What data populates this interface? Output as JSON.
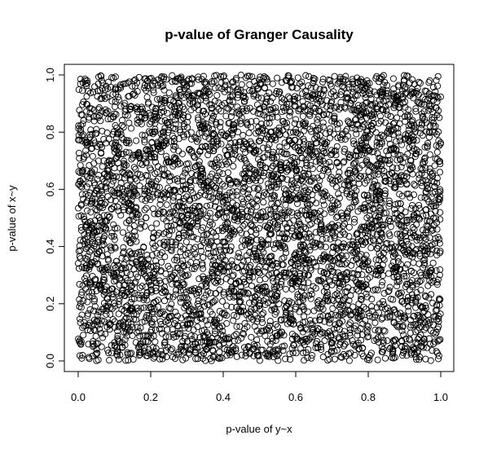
{
  "chart_data": {
    "type": "scatter",
    "title": "p-value of Granger Causality",
    "xlabel": "p-value of y~x",
    "ylabel": "p-value of x~y",
    "xlim": [
      0.0,
      1.0
    ],
    "ylim": [
      0.0,
      1.0
    ],
    "xticks": [
      "0.0",
      "0.2",
      "0.4",
      "0.6",
      "0.8",
      "1.0"
    ],
    "yticks": [
      "0.0",
      "0.2",
      "0.4",
      "0.6",
      "0.8",
      "1.0"
    ],
    "grid": false,
    "marker": "open-circle",
    "marker_color": "#000000",
    "point_count_approx": 5000,
    "distribution": "approximately uniform over [0,1] x [0,1]",
    "points_sample": [
      [
        0.02,
        0.98
      ],
      [
        0.11,
        0.95
      ],
      [
        0.24,
        0.91
      ],
      [
        0.37,
        0.97
      ],
      [
        0.49,
        0.93
      ],
      [
        0.58,
        0.99
      ],
      [
        0.66,
        0.9
      ],
      [
        0.78,
        0.96
      ],
      [
        0.88,
        0.92
      ],
      [
        0.97,
        0.98
      ],
      [
        0.05,
        0.81
      ],
      [
        0.16,
        0.77
      ],
      [
        0.29,
        0.85
      ],
      [
        0.41,
        0.72
      ],
      [
        0.53,
        0.8
      ],
      [
        0.64,
        0.74
      ],
      [
        0.75,
        0.83
      ],
      [
        0.83,
        0.71
      ],
      [
        0.92,
        0.79
      ],
      [
        0.99,
        0.86
      ],
      [
        0.03,
        0.62
      ],
      [
        0.14,
        0.55
      ],
      [
        0.22,
        0.68
      ],
      [
        0.35,
        0.58
      ],
      [
        0.46,
        0.64
      ],
      [
        0.57,
        0.52
      ],
      [
        0.69,
        0.66
      ],
      [
        0.8,
        0.57
      ],
      [
        0.9,
        0.63
      ],
      [
        0.96,
        0.51
      ],
      [
        0.07,
        0.43
      ],
      [
        0.19,
        0.37
      ],
      [
        0.31,
        0.47
      ],
      [
        0.43,
        0.33
      ],
      [
        0.51,
        0.41
      ],
      [
        0.62,
        0.36
      ],
      [
        0.73,
        0.45
      ],
      [
        0.85,
        0.39
      ],
      [
        0.94,
        0.34
      ],
      [
        0.99,
        0.46
      ],
      [
        0.01,
        0.24
      ],
      [
        0.12,
        0.18
      ],
      [
        0.27,
        0.27
      ],
      [
        0.39,
        0.15
      ],
      [
        0.48,
        0.22
      ],
      [
        0.6,
        0.29
      ],
      [
        0.71,
        0.16
      ],
      [
        0.82,
        0.25
      ],
      [
        0.91,
        0.19
      ],
      [
        0.98,
        0.28
      ],
      [
        0.04,
        0.06
      ],
      [
        0.17,
        0.03
      ],
      [
        0.26,
        0.11
      ],
      [
        0.34,
        0.02
      ],
      [
        0.45,
        0.08
      ],
      [
        0.55,
        0.12
      ],
      [
        0.67,
        0.04
      ],
      [
        0.77,
        0.09
      ],
      [
        0.87,
        0.01
      ],
      [
        0.95,
        0.07
      ]
    ]
  }
}
